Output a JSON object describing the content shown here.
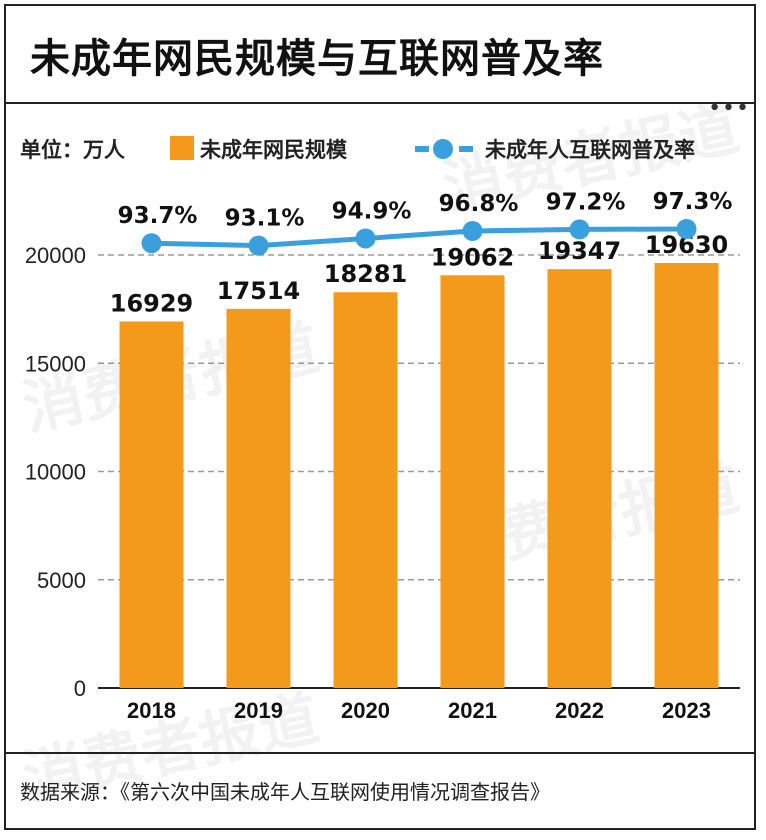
{
  "title": "未成年网民规模与互联网普及率",
  "more_icon": "more-dots-icon",
  "legend": {
    "unit": "单位：万人",
    "bar_label": "未成年网民规模",
    "line_label": "未成年人互联网普及率"
  },
  "watermark": "消费者报道",
  "source": "数据来源：《第六次中国未成年人互联网使用情况调查报告》",
  "colors": {
    "bar": "#F39A1C",
    "line": "#3AA0DD",
    "grid": "#9a9a9a"
  },
  "chart_data": {
    "type": "bar",
    "categories": [
      "2018",
      "2019",
      "2020",
      "2021",
      "2022",
      "2023"
    ],
    "series": [
      {
        "name": "未成年网民规模",
        "type": "bar",
        "values": [
          16929,
          17514,
          18281,
          19062,
          19347,
          19630
        ]
      },
      {
        "name": "未成年人互联网普及率",
        "type": "line",
        "values": [
          93.7,
          93.1,
          94.9,
          96.8,
          97.2,
          97.3
        ],
        "labels": [
          "93.7%",
          "93.1%",
          "94.9%",
          "96.8%",
          "97.2%",
          "97.3%"
        ]
      }
    ],
    "yticks": [
      0,
      5000,
      10000,
      15000,
      20000
    ],
    "ylim": [
      0,
      20000
    ],
    "grid": true,
    "legend_position": "top"
  }
}
